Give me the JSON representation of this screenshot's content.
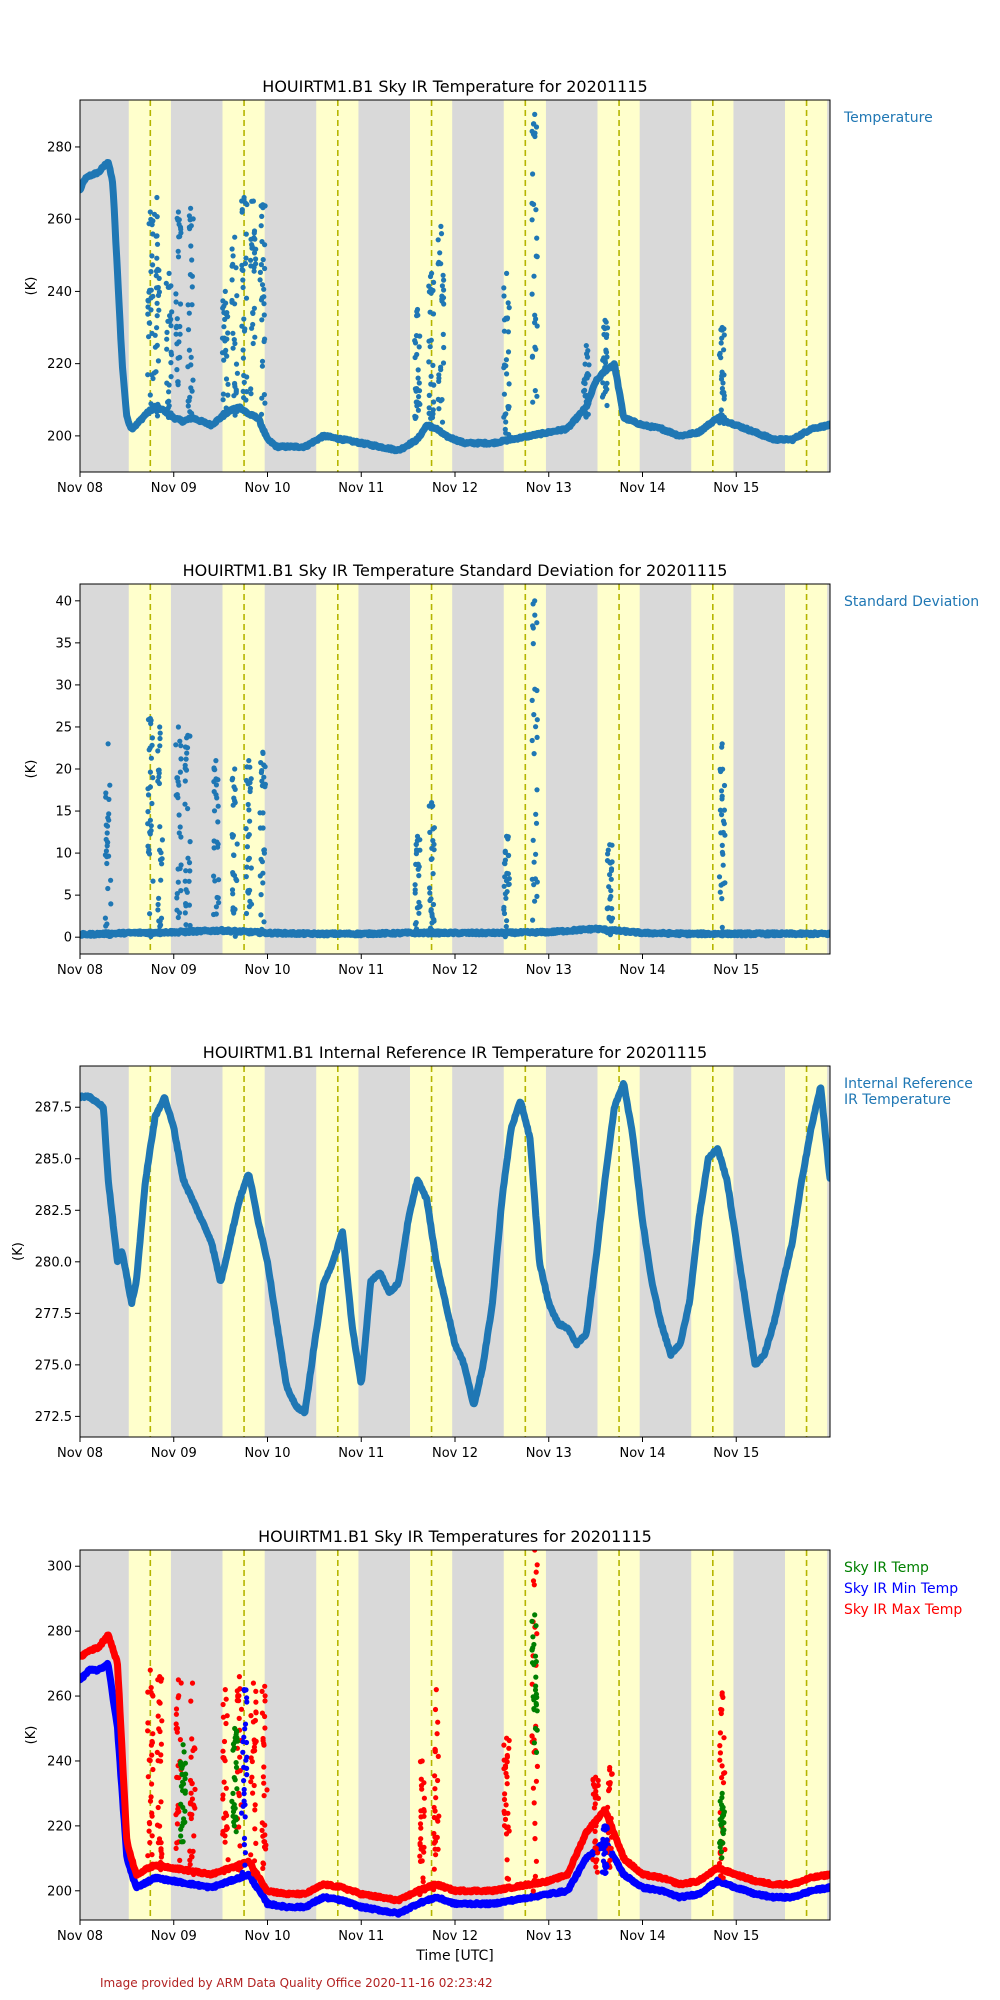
{
  "colors": {
    "night": "#d9d9d9",
    "day": "#ffffcc",
    "noon_line": "#b5b500",
    "series_blue": "#1f77b4",
    "green": "#008000",
    "blue": "#0000ff",
    "red": "#ff0000",
    "footer": "#b22222"
  },
  "x_axis": {
    "range_days": [
      0,
      8
    ],
    "tick_days": [
      0,
      1,
      2,
      3,
      4,
      5,
      6,
      7
    ],
    "tick_labels": [
      "Nov 08",
      "Nov 09",
      "Nov 10",
      "Nov 11",
      "Nov 12",
      "Nov 13",
      "Nov 14",
      "Nov 15"
    ],
    "xlabel": "Time [UTC]",
    "daylight_intervals": [
      [
        0.52,
        0.97
      ],
      [
        1.52,
        1.97
      ],
      [
        2.52,
        2.97
      ],
      [
        3.52,
        3.97
      ],
      [
        4.52,
        4.97
      ],
      [
        5.52,
        5.97
      ],
      [
        6.52,
        6.97
      ],
      [
        7.52,
        7.97
      ]
    ],
    "solar_noon": [
      0.75,
      1.75,
      2.75,
      3.75,
      4.75,
      5.75,
      6.75,
      7.75
    ]
  },
  "footer": "Image provided by ARM Data Quality Office 2020-11-16 02:23:42",
  "chart_data": [
    {
      "type": "scatter",
      "title": "HOUIRTM1.B1 Sky IR Temperature for 20201115",
      "ylabel": "(K)",
      "ylim": [
        190,
        293
      ],
      "yticks": [
        200,
        220,
        240,
        260,
        280
      ],
      "legend": [
        "Temperature"
      ],
      "series": [
        {
          "name": "Temperature",
          "color": "#1f77b4",
          "x": [
            0,
            0.05,
            0.1,
            0.2,
            0.3,
            0.35,
            0.4,
            0.45,
            0.5,
            0.55,
            0.6,
            0.7,
            0.8,
            0.9,
            1.0,
            1.1,
            1.2,
            1.3,
            1.4,
            1.5,
            1.6,
            1.7,
            1.8,
            1.9,
            2.0,
            2.1,
            2.2,
            2.4,
            2.6,
            2.8,
            3.0,
            3.2,
            3.4,
            3.6,
            3.7,
            3.8,
            3.9,
            4.0,
            4.1,
            4.2,
            4.4,
            4.6,
            4.8,
            5.0,
            5.2,
            5.4,
            5.5,
            5.6,
            5.7,
            5.8,
            6.0,
            6.2,
            6.4,
            6.6,
            6.8,
            7.0,
            7.2,
            7.4,
            7.6,
            7.8,
            8.0
          ],
          "y": [
            268,
            271,
            272,
            273,
            276,
            270,
            245,
            220,
            205,
            202,
            203,
            206,
            208,
            207,
            205,
            204,
            205,
            204,
            203,
            205,
            207,
            208,
            206,
            205,
            199,
            197,
            197,
            197,
            200,
            199,
            198,
            197,
            196,
            199,
            203,
            202,
            200,
            199,
            198,
            198,
            198,
            199,
            200,
            201,
            202,
            208,
            215,
            218,
            220,
            205,
            203,
            202,
            200,
            201,
            205,
            203,
            201,
            199,
            199,
            202,
            203
          ]
        }
      ],
      "scatter_spikes": [
        {
          "x": 0.75,
          "ymin": 205,
          "ymax": 262
        },
        {
          "x": 0.82,
          "ymin": 205,
          "ymax": 266
        },
        {
          "x": 0.95,
          "ymin": 205,
          "ymax": 245
        },
        {
          "x": 1.05,
          "ymin": 205,
          "ymax": 262
        },
        {
          "x": 1.18,
          "ymin": 205,
          "ymax": 263
        },
        {
          "x": 1.55,
          "ymin": 205,
          "ymax": 240
        },
        {
          "x": 1.65,
          "ymin": 205,
          "ymax": 255
        },
        {
          "x": 1.75,
          "ymin": 205,
          "ymax": 266
        },
        {
          "x": 1.85,
          "ymin": 205,
          "ymax": 265
        },
        {
          "x": 1.95,
          "ymin": 205,
          "ymax": 264
        },
        {
          "x": 3.6,
          "ymin": 199,
          "ymax": 235
        },
        {
          "x": 3.75,
          "ymin": 200,
          "ymax": 245
        },
        {
          "x": 3.85,
          "ymin": 200,
          "ymax": 258
        },
        {
          "x": 4.55,
          "ymin": 199,
          "ymax": 245
        },
        {
          "x": 4.85,
          "ymin": 199,
          "ymax": 289
        },
        {
          "x": 5.4,
          "ymin": 205,
          "ymax": 225
        },
        {
          "x": 5.6,
          "ymin": 208,
          "ymax": 232
        },
        {
          "x": 6.85,
          "ymin": 203,
          "ymax": 230
        }
      ]
    },
    {
      "type": "scatter",
      "title": "HOUIRTM1.B1 Sky IR Temperature Standard Deviation for 20201115",
      "ylabel": "(K)",
      "ylim": [
        -2,
        42
      ],
      "yticks": [
        0,
        5,
        10,
        15,
        20,
        25,
        30,
        35,
        40
      ],
      "legend": [
        "Standard Deviation"
      ],
      "series": [
        {
          "name": "Standard Deviation",
          "color": "#1f77b4",
          "x": [
            0,
            0.5,
            1.0,
            1.5,
            2.0,
            2.5,
            3.0,
            3.5,
            4.0,
            4.5,
            5.0,
            5.5,
            6.0,
            6.5,
            7.0,
            7.5,
            8.0
          ],
          "y": [
            0.3,
            0.5,
            0.6,
            0.8,
            0.5,
            0.4,
            0.4,
            0.5,
            0.5,
            0.5,
            0.6,
            1.0,
            0.5,
            0.4,
            0.4,
            0.4,
            0.4
          ]
        }
      ],
      "scatter_spikes": [
        {
          "x": 0.3,
          "ymin": 0,
          "ymax": 23
        },
        {
          "x": 0.75,
          "ymin": 0,
          "ymax": 26
        },
        {
          "x": 0.85,
          "ymin": 0,
          "ymax": 25
        },
        {
          "x": 1.05,
          "ymin": 0,
          "ymax": 25
        },
        {
          "x": 1.15,
          "ymin": 0,
          "ymax": 24
        },
        {
          "x": 1.45,
          "ymin": 0,
          "ymax": 21
        },
        {
          "x": 1.65,
          "ymin": 0,
          "ymax": 20
        },
        {
          "x": 1.8,
          "ymin": 0,
          "ymax": 21
        },
        {
          "x": 1.95,
          "ymin": 0,
          "ymax": 22
        },
        {
          "x": 3.6,
          "ymin": 0,
          "ymax": 12
        },
        {
          "x": 3.75,
          "ymin": 0,
          "ymax": 16
        },
        {
          "x": 4.55,
          "ymin": 0,
          "ymax": 12
        },
        {
          "x": 4.85,
          "ymin": 0,
          "ymax": 40
        },
        {
          "x": 5.65,
          "ymin": 0,
          "ymax": 11
        },
        {
          "x": 6.85,
          "ymin": 0,
          "ymax": 23
        }
      ]
    },
    {
      "type": "scatter",
      "title": "HOUIRTM1.B1 Internal Reference IR Temperature for 20201115",
      "ylabel": "(K)",
      "ylim": [
        271.5,
        289.5
      ],
      "yticks": [
        272.5,
        275.0,
        277.5,
        280.0,
        282.5,
        285.0,
        287.5
      ],
      "ytick_labels": [
        "272.5",
        "275.0",
        "277.5",
        "280.0",
        "282.5",
        "285.0",
        "287.5"
      ],
      "legend": [
        "Internal Reference\n IR Temperature"
      ],
      "series": [
        {
          "name": "Internal Reference\n IR Temperature",
          "color": "#1f77b4",
          "x": [
            0,
            0.1,
            0.25,
            0.3,
            0.4,
            0.45,
            0.55,
            0.6,
            0.7,
            0.8,
            0.9,
            1.0,
            1.1,
            1.2,
            1.3,
            1.4,
            1.5,
            1.6,
            1.7,
            1.8,
            1.9,
            2.0,
            2.1,
            2.2,
            2.3,
            2.4,
            2.5,
            2.6,
            2.7,
            2.8,
            2.9,
            3.0,
            3.1,
            3.2,
            3.3,
            3.4,
            3.5,
            3.6,
            3.7,
            3.8,
            3.9,
            4.0,
            4.1,
            4.2,
            4.3,
            4.4,
            4.5,
            4.6,
            4.7,
            4.8,
            4.9,
            5.0,
            5.1,
            5.2,
            5.3,
            5.4,
            5.5,
            5.6,
            5.7,
            5.8,
            5.9,
            6.0,
            6.1,
            6.2,
            6.3,
            6.4,
            6.5,
            6.6,
            6.7,
            6.8,
            6.9,
            7.0,
            7.1,
            7.2,
            7.3,
            7.4,
            7.5,
            7.6,
            7.7,
            7.8,
            7.9,
            8.0
          ],
          "y": [
            288,
            288,
            287.5,
            284,
            280,
            280.5,
            278,
            279,
            284,
            287,
            288,
            286.5,
            284,
            283,
            282,
            281,
            279,
            281,
            283,
            284.3,
            282,
            280,
            277,
            274,
            273,
            272.7,
            276,
            279,
            280,
            281.5,
            277,
            274,
            279,
            279.5,
            278.5,
            279,
            282,
            284,
            283,
            280,
            278,
            276,
            275,
            273,
            275,
            278,
            283,
            286.5,
            287.8,
            286,
            280,
            278,
            277,
            276.8,
            276,
            276.5,
            280,
            284,
            287.5,
            288.7,
            286,
            282,
            279,
            277,
            275.5,
            276,
            278,
            282,
            285,
            285.5,
            284,
            281,
            278,
            275,
            275.5,
            277,
            279,
            281,
            284,
            286.5,
            288.5,
            284
          ]
        }
      ],
      "scatter_spikes": []
    },
    {
      "type": "scatter",
      "title": "HOUIRTM1.B1 Sky IR Temperatures for 20201115",
      "xlabel": "Time [UTC]",
      "ylabel": "(K)",
      "ylim": [
        191,
        305
      ],
      "yticks": [
        200,
        220,
        240,
        260,
        280,
        300
      ],
      "legend": [
        "Sky IR Temp",
        "Sky IR Min Temp",
        "Sky IR Max Temp"
      ],
      "series": [
        {
          "name": "Sky IR Min Temp",
          "color": "#0000ff",
          "x": [
            0,
            0.1,
            0.2,
            0.3,
            0.4,
            0.5,
            0.6,
            0.8,
            1.0,
            1.2,
            1.4,
            1.6,
            1.8,
            2.0,
            2.2,
            2.4,
            2.6,
            2.8,
            3.0,
            3.2,
            3.4,
            3.6,
            3.8,
            4.0,
            4.2,
            4.4,
            4.6,
            4.8,
            5.0,
            5.2,
            5.4,
            5.6,
            5.8,
            6.0,
            6.2,
            6.4,
            6.6,
            6.8,
            7.0,
            7.2,
            7.4,
            7.6,
            7.8,
            8.0
          ],
          "y": [
            265,
            268,
            268,
            270,
            250,
            210,
            201,
            204,
            203,
            202,
            201,
            203,
            205,
            196,
            195,
            195,
            198,
            197,
            195,
            194,
            193,
            196,
            198,
            196,
            196,
            196,
            197,
            198,
            199,
            200,
            210,
            215,
            205,
            201,
            200,
            198,
            199,
            203,
            201,
            199,
            198,
            198,
            200,
            201
          ]
        },
        {
          "name": "Sky IR Max Temp",
          "color": "#ff0000",
          "x": [
            0,
            0.1,
            0.2,
            0.3,
            0.4,
            0.5,
            0.6,
            0.8,
            1.0,
            1.2,
            1.4,
            1.6,
            1.8,
            2.0,
            2.2,
            2.4,
            2.6,
            2.8,
            3.0,
            3.2,
            3.4,
            3.6,
            3.8,
            4.0,
            4.2,
            4.4,
            4.6,
            4.8,
            5.0,
            5.2,
            5.4,
            5.6,
            5.8,
            6.0,
            6.2,
            6.4,
            6.6,
            6.8,
            7.0,
            7.2,
            7.4,
            7.6,
            7.8,
            8.0
          ],
          "y": [
            272,
            274,
            275,
            279,
            270,
            215,
            205,
            208,
            207,
            206,
            205,
            207,
            209,
            200,
            199,
            199,
            202,
            201,
            199,
            198,
            197,
            200,
            202,
            200,
            200,
            200,
            201,
            202,
            203,
            205,
            218,
            225,
            210,
            205,
            204,
            202,
            203,
            207,
            205,
            203,
            202,
            202,
            204,
            205
          ]
        }
      ],
      "scatter_spikes": [
        {
          "x": 0.75,
          "ymin": 205,
          "ymax": 268,
          "color": "#ff0000"
        },
        {
          "x": 0.85,
          "ymin": 205,
          "ymax": 266,
          "color": "#ff0000"
        },
        {
          "x": 1.05,
          "ymin": 205,
          "ymax": 265,
          "color": "#ff0000"
        },
        {
          "x": 1.2,
          "ymin": 205,
          "ymax": 264,
          "color": "#ff0000"
        },
        {
          "x": 1.55,
          "ymin": 205,
          "ymax": 262,
          "color": "#ff0000"
        },
        {
          "x": 1.7,
          "ymin": 205,
          "ymax": 266,
          "color": "#ff0000"
        },
        {
          "x": 1.85,
          "ymin": 205,
          "ymax": 264,
          "color": "#ff0000"
        },
        {
          "x": 1.97,
          "ymin": 205,
          "ymax": 263,
          "color": "#ff0000"
        },
        {
          "x": 3.65,
          "ymin": 198,
          "ymax": 240,
          "color": "#ff0000"
        },
        {
          "x": 3.8,
          "ymin": 198,
          "ymax": 262,
          "color": "#ff0000"
        },
        {
          "x": 4.55,
          "ymin": 198,
          "ymax": 247,
          "color": "#ff0000"
        },
        {
          "x": 4.85,
          "ymin": 198,
          "ymax": 305,
          "color": "#ff0000"
        },
        {
          "x": 5.5,
          "ymin": 205,
          "ymax": 235,
          "color": "#ff0000"
        },
        {
          "x": 5.65,
          "ymin": 205,
          "ymax": 238,
          "color": "#ff0000"
        },
        {
          "x": 6.85,
          "ymin": 203,
          "ymax": 261,
          "color": "#ff0000"
        },
        {
          "x": 1.1,
          "ymin": 215,
          "ymax": 245,
          "color": "#008000"
        },
        {
          "x": 1.65,
          "ymin": 215,
          "ymax": 250,
          "color": "#008000"
        },
        {
          "x": 4.85,
          "ymin": 240,
          "ymax": 285,
          "color": "#008000"
        },
        {
          "x": 6.85,
          "ymin": 210,
          "ymax": 230,
          "color": "#008000"
        },
        {
          "x": 1.75,
          "ymin": 205,
          "ymax": 262,
          "color": "#0000ff"
        },
        {
          "x": 5.6,
          "ymin": 205,
          "ymax": 220,
          "color": "#0000ff"
        }
      ]
    }
  ]
}
